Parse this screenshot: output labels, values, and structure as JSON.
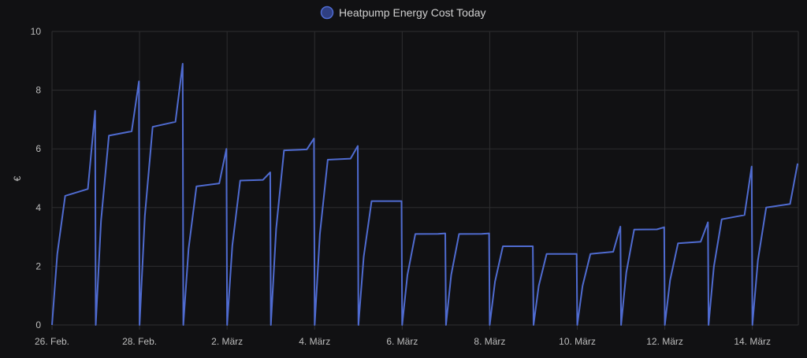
{
  "chart_data": {
    "type": "line",
    "title": "",
    "ylabel": "€",
    "xlabel": "",
    "ylim": [
      0,
      10
    ],
    "xlim": [
      0,
      17.05
    ],
    "y_ticks": [
      "0",
      "2",
      "4",
      "6",
      "8",
      "10"
    ],
    "x_ticks": [
      {
        "x": 0,
        "label": "26. Feb."
      },
      {
        "x": 2,
        "label": "28. Feb."
      },
      {
        "x": 4,
        "label": "2. März"
      },
      {
        "x": 6,
        "label": "4. März"
      },
      {
        "x": 8,
        "label": "6. März"
      },
      {
        "x": 10,
        "label": "8. März"
      },
      {
        "x": 12,
        "label": "10. März"
      },
      {
        "x": 14,
        "label": "12. März"
      },
      {
        "x": 16,
        "label": "14. März"
      }
    ],
    "grid": true,
    "legend_position": "top",
    "series": [
      {
        "name": "Heatpump Energy Cost Today",
        "color": "#4f6bd0",
        "legend_fill": "#2f3f82",
        "days": [
          {
            "start": 0.0,
            "plateau": 4.4,
            "peak": 7.3
          },
          {
            "start": 1.0,
            "plateau": 6.45,
            "peak": 8.3
          },
          {
            "start": 2.0,
            "plateau": 6.75,
            "peak": 8.9
          },
          {
            "start": 3.0,
            "plateau": 4.72,
            "peak": 6.0
          },
          {
            "start": 4.0,
            "plateau": 4.92,
            "peak": 5.2
          },
          {
            "start": 5.0,
            "plateau": 5.95,
            "peak": 6.35
          },
          {
            "start": 6.0,
            "plateau": 5.63,
            "peak": 6.1
          },
          {
            "start": 7.0,
            "plateau": 4.22,
            "peak": 4.22
          },
          {
            "start": 8.0,
            "plateau": 3.1,
            "peak": 3.12
          },
          {
            "start": 9.0,
            "plateau": 3.1,
            "peak": 3.12
          },
          {
            "start": 10.0,
            "plateau": 2.68,
            "peak": 2.68
          },
          {
            "start": 11.0,
            "plateau": 2.42,
            "peak": 2.42
          },
          {
            "start": 12.0,
            "plateau": 2.42,
            "peak": 3.35
          },
          {
            "start": 13.0,
            "plateau": 3.25,
            "peak": 3.33
          },
          {
            "start": 14.0,
            "plateau": 2.78,
            "peak": 3.5
          },
          {
            "start": 15.0,
            "plateau": 3.6,
            "peak": 5.4
          },
          {
            "start": 16.0,
            "plateau": 4.0,
            "peak": 5.5
          }
        ]
      }
    ]
  }
}
